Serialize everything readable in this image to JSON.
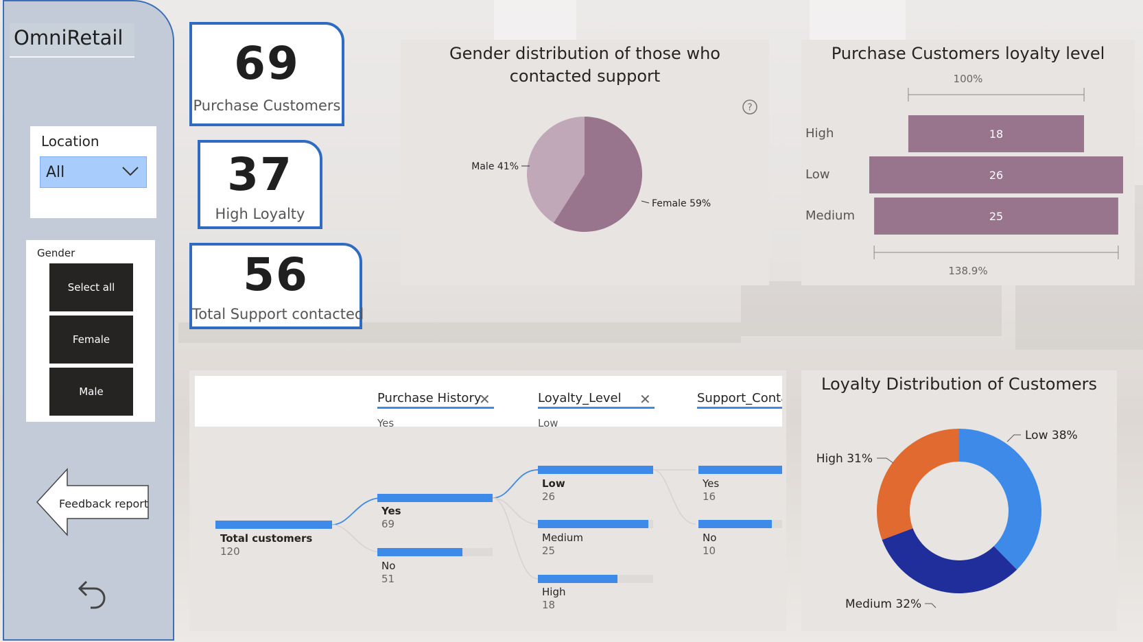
{
  "app": {
    "title": "OmniRetail"
  },
  "filters": {
    "location": {
      "label": "Location",
      "value": "All"
    },
    "gender": {
      "label": "Gender",
      "options": [
        "Select all",
        "Female",
        "Male"
      ]
    }
  },
  "nav": {
    "feedback_label": "Feedback report"
  },
  "kpis": [
    {
      "value": "69",
      "label": "Purchase Customers"
    },
    {
      "value": "37",
      "label": "High Loyalty"
    },
    {
      "value": "56",
      "label": "Total Support contacted"
    }
  ],
  "colors": {
    "accent": "#2f6bc0",
    "purple": "#98758c",
    "light_purple": "#c0a8b8",
    "blue": "#3d8ae8",
    "orange": "#e06a30",
    "navy": "#1f2e9a"
  },
  "gender_chart": {
    "title": "Gender distribution of those who contacted support",
    "chart_data": {
      "type": "pie",
      "slices": [
        {
          "label": "Male",
          "value": 41,
          "text": "Male 41%"
        },
        {
          "label": "Female",
          "value": 59,
          "text": "Female 59%"
        }
      ]
    }
  },
  "loyalty_funnel": {
    "title": "Purchase Customers loyalty level",
    "top_pct": "100%",
    "bottom_pct": "138.9%",
    "chart_data": {
      "type": "bar",
      "categories": [
        "High",
        "Low",
        "Medium"
      ],
      "values": [
        18,
        26,
        25
      ]
    }
  },
  "decomp_tree": {
    "levels": [
      {
        "name": "Purchase History",
        "selected": "Yes"
      },
      {
        "name": "Loyalty_Level",
        "selected": "Low"
      },
      {
        "name": "Support_Conta",
        "selected": ""
      }
    ],
    "root": {
      "label": "Total customers",
      "value": "120"
    },
    "purchase": [
      {
        "label": "Yes",
        "value": "69"
      },
      {
        "label": "No",
        "value": "51"
      }
    ],
    "loyalty": [
      {
        "label": "Low",
        "value": "26"
      },
      {
        "label": "Medium",
        "value": "25"
      },
      {
        "label": "High",
        "value": "18"
      }
    ],
    "support": [
      {
        "label": "Yes",
        "value": "16"
      },
      {
        "label": "No",
        "value": "10"
      }
    ]
  },
  "donut_chart": {
    "title": "Loyalty Distribution of Customers",
    "chart_data": {
      "type": "pie",
      "slices": [
        {
          "label": "Low",
          "value": 38,
          "text": "Low 38%",
          "color": "#3d8ae8"
        },
        {
          "label": "Medium",
          "value": 32,
          "text": "Medium 32%",
          "color": "#1f2e9a"
        },
        {
          "label": "High",
          "value": 31,
          "text": "High 31%",
          "color": "#e06a30"
        }
      ]
    }
  }
}
